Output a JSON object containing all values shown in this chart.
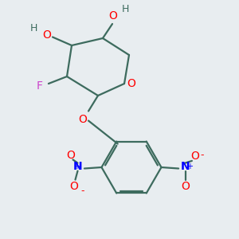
{
  "background_color": "#e8edf0",
  "bond_color": "#3d6b5e",
  "oxygen_color": "#ff0000",
  "fluorine_color": "#cc44cc",
  "nitrogen_color": "#0000ff",
  "H_color": "#3d6b5e",
  "figsize": [
    3.0,
    3.0
  ],
  "dpi": 100,
  "xlim": [
    0,
    10
  ],
  "ylim": [
    0,
    10
  ]
}
